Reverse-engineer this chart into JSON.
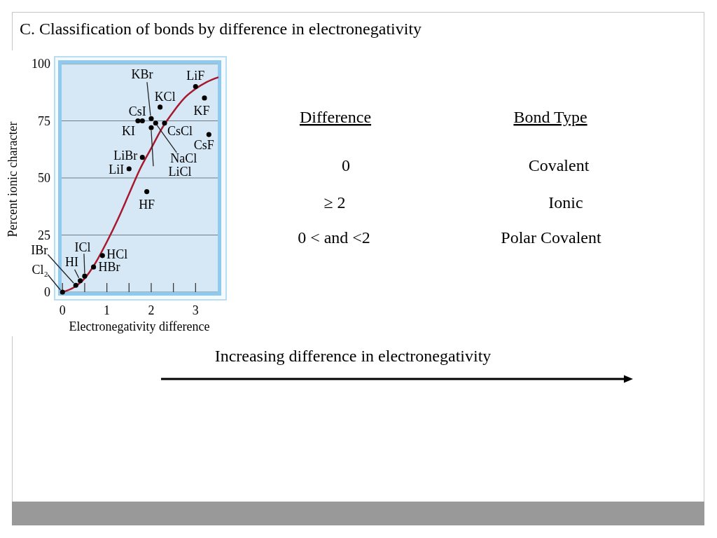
{
  "chart_data": [
    {
      "type": "scatter",
      "title": "C. Classification of bonds by difference in electronegativity",
      "xlabel": "Electronegativity difference",
      "ylabel": "Percent ionic character",
      "xlim": [
        -0.02,
        3.5
      ],
      "ylim": [
        0,
        100
      ],
      "xticks": [
        0,
        {
          "value": 0.5,
          "label": null
        },
        1,
        {
          "value": 1.5,
          "label": null
        },
        2,
        {
          "value": 2.5,
          "label": null
        },
        3
      ],
      "yticks": [
        0,
        25,
        50,
        75,
        100
      ],
      "grid": "y",
      "series": [
        {
          "type": "line",
          "color": "#a6192e",
          "x": [
            0,
            0.25,
            0.5,
            0.75,
            1,
            1.25,
            1.5,
            1.75,
            2,
            2.25,
            2.5,
            2.75,
            3,
            3.25,
            3.5
          ],
          "values": [
            0,
            2,
            6,
            13,
            22,
            32,
            43,
            54,
            63,
            72,
            79,
            85,
            89,
            92,
            94
          ]
        },
        {
          "type": "scatter",
          "color": "#000000",
          "marker": "circle",
          "x": [
            0,
            0.3,
            0.4,
            0.5,
            0.7,
            0.9,
            1.9,
            1.5,
            1.8,
            1.7,
            1.8,
            2.0,
            2.0,
            2.1,
            2.3,
            2.2,
            3.3,
            3.2,
            3.0
          ],
          "values": [
            0,
            3,
            5,
            7,
            11,
            16,
            44,
            54,
            59,
            75,
            75,
            76,
            72,
            74,
            74,
            81,
            69,
            85,
            90
          ]
        }
      ],
      "annotations": [
        {
          "text": "Cl₂",
          "x": 0,
          "y": 0
        },
        {
          "text": "IBr",
          "x": 0.3,
          "y": 3
        },
        {
          "text": "HI",
          "x": 0.4,
          "y": 5
        },
        {
          "text": "ICl",
          "x": 0.5,
          "y": 7
        },
        {
          "text": "HBr",
          "x": 0.7,
          "y": 11
        },
        {
          "text": "HCl",
          "x": 0.9,
          "y": 16
        },
        {
          "text": "HF",
          "x": 1.9,
          "y": 44
        },
        {
          "text": "LiI",
          "x": 1.5,
          "y": 54
        },
        {
          "text": "LiBr",
          "x": 1.8,
          "y": 59
        },
        {
          "text": "KI",
          "x": 1.7,
          "y": 75
        },
        {
          "text": "CsI",
          "x": 1.8,
          "y": 75
        },
        {
          "text": "KBr",
          "x": 2.0,
          "y": 76
        },
        {
          "text": "LiCl",
          "x": 2.0,
          "y": 72
        },
        {
          "text": "NaCl",
          "x": 2.1,
          "y": 74
        },
        {
          "text": "CsCl",
          "x": 2.3,
          "y": 74
        },
        {
          "text": "KCl",
          "x": 2.2,
          "y": 81
        },
        {
          "text": "CsF",
          "x": 3.3,
          "y": 69
        },
        {
          "text": "KF",
          "x": 3.2,
          "y": 85
        },
        {
          "text": "LiF",
          "x": 3.0,
          "y": 90
        }
      ]
    },
    {
      "type": "other",
      "annotations": [
        "Difference",
        "Bond Type",
        "0",
        "Covalent",
        "≥ 2",
        "Ionic",
        "0 < and <2",
        "Polar Covalent",
        "Increasing difference in electronegativity"
      ]
    }
  ]
}
